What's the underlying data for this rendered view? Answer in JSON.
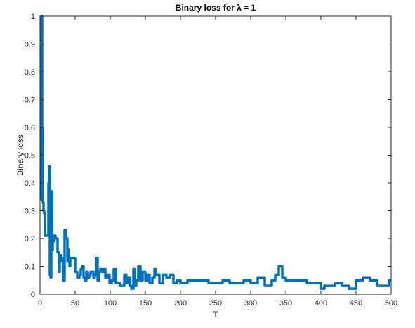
{
  "chart_data": {
    "type": "line",
    "title": "Binary loss for λ = 1",
    "xlabel": "T",
    "ylabel": "Binary loss",
    "xlim": [
      0,
      500
    ],
    "ylim": [
      0,
      1
    ],
    "xticks": [
      0,
      50,
      100,
      150,
      200,
      250,
      300,
      350,
      400,
      450,
      500
    ],
    "yticks": [
      0,
      0.1,
      0.2,
      0.3,
      0.4,
      0.5,
      0.6,
      0.7,
      0.8,
      0.9,
      1
    ],
    "grid": false,
    "legend": "none",
    "series_color": "#0072BD",
    "series": [
      {
        "x": [
          1,
          2,
          3,
          4,
          5,
          6,
          7,
          8,
          9,
          10,
          11,
          12,
          13,
          14,
          15,
          16,
          17,
          18,
          19,
          20,
          21,
          22,
          23,
          25,
          27,
          28,
          30,
          31,
          33,
          35,
          37,
          39,
          40,
          41,
          42,
          43,
          45,
          47,
          50,
          53,
          56,
          58,
          60,
          62,
          64,
          66,
          68,
          70,
          72,
          74,
          76,
          78,
          80,
          82,
          84,
          86,
          88,
          90,
          93,
          96,
          99,
          102,
          105,
          108,
          111,
          114,
          117,
          120,
          123,
          126,
          128,
          130,
          133,
          135,
          137,
          140,
          143,
          146,
          150,
          153,
          156,
          160,
          163,
          165,
          170,
          175,
          180,
          185,
          190,
          195,
          200,
          210,
          220,
          230,
          240,
          250,
          260,
          270,
          280,
          290,
          300,
          310,
          320,
          330,
          335,
          340,
          345,
          350,
          360,
          370,
          380,
          390,
          400,
          405,
          410,
          415,
          420,
          430,
          440,
          450,
          455,
          460,
          470,
          480,
          490,
          497,
          500
        ],
        "y": [
          0.34,
          1.0,
          0.6,
          0.33,
          0.3,
          0.29,
          0.21,
          0.21,
          0.21,
          0.21,
          0.21,
          0.4,
          0.46,
          0.07,
          0.06,
          0.37,
          0.16,
          0.21,
          0.19,
          0.2,
          0.21,
          0.2,
          0.2,
          0.15,
          0.08,
          0.14,
          0.12,
          0.13,
          0.05,
          0.23,
          0.2,
          0.12,
          0.16,
          0.12,
          0.1,
          0.13,
          0.13,
          0.13,
          0.08,
          0.06,
          0.07,
          0.09,
          0.1,
          0.06,
          0.05,
          0.08,
          0.06,
          0.07,
          0.08,
          0.08,
          0.06,
          0.07,
          0.13,
          0.05,
          0.08,
          0.09,
          0.08,
          0.09,
          0.06,
          0.07,
          0.04,
          0.05,
          0.09,
          0.04,
          0.04,
          0.03,
          0.03,
          0.07,
          0.04,
          0.06,
          0.03,
          0.02,
          0.09,
          0.03,
          0.05,
          0.1,
          0.05,
          0.08,
          0.05,
          0.07,
          0.04,
          0.06,
          0.09,
          0.07,
          0.04,
          0.07,
          0.06,
          0.07,
          0.04,
          0.05,
          0.04,
          0.05,
          0.05,
          0.05,
          0.04,
          0.04,
          0.05,
          0.04,
          0.04,
          0.05,
          0.04,
          0.06,
          0.03,
          0.05,
          0.07,
          0.1,
          0.06,
          0.05,
          0.05,
          0.05,
          0.04,
          0.04,
          0.02,
          0.03,
          0.03,
          0.03,
          0.04,
          0.03,
          0.02,
          0.05,
          0.05,
          0.06,
          0.05,
          0.03,
          0.03,
          0.05,
          0.05
        ]
      }
    ]
  }
}
